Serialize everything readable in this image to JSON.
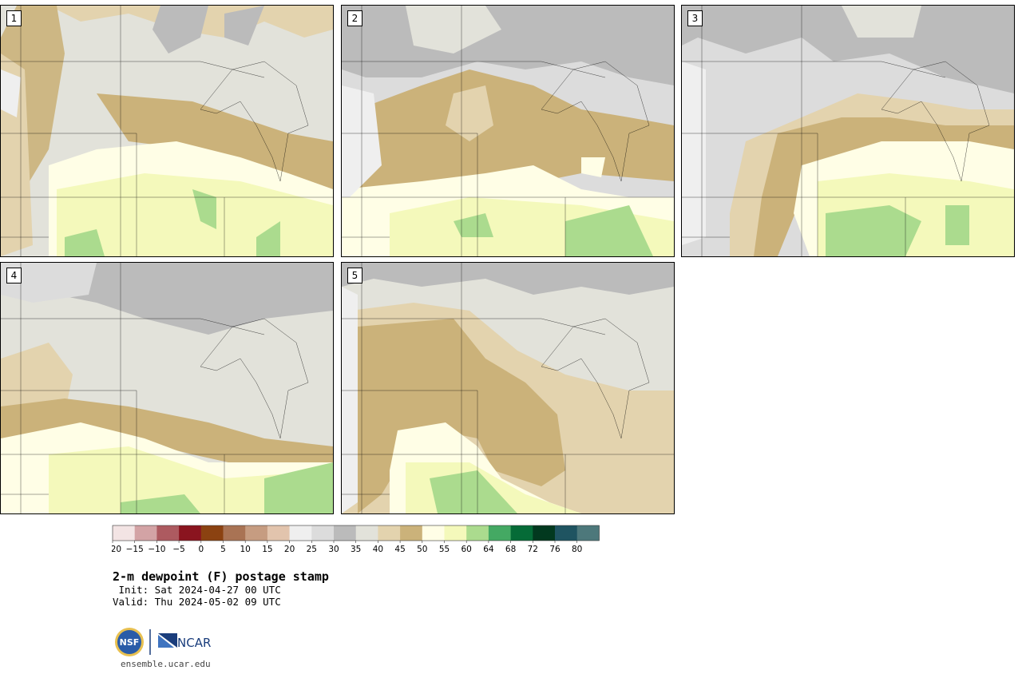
{
  "panels": [
    {
      "label": "1"
    },
    {
      "label": "2"
    },
    {
      "label": "3"
    },
    {
      "label": "4"
    },
    {
      "label": "5"
    }
  ],
  "colorbar": {
    "colors": [
      "#f3e4e4",
      "#d3a3a5",
      "#ad5a60",
      "#8a141f",
      "#8b4211",
      "#a97354",
      "#c69c81",
      "#e2c4ad",
      "#efefef",
      "#dcdcdc",
      "#bbbbbb",
      "#e2e2da",
      "#e3d3ae",
      "#cbb27a",
      "#fffee6",
      "#f4f9bb",
      "#abdb8e",
      "#44a963",
      "#056b37",
      "#02391f",
      "#1f5461",
      "#4d787b"
    ],
    "tick_labels": [
      "−20",
      "−15",
      "−10",
      "−5",
      "0",
      "5",
      "10",
      "15",
      "20",
      "25",
      "30",
      "35",
      "40",
      "45",
      "50",
      "55",
      "60",
      "64",
      "68",
      "72",
      "76",
      "80"
    ]
  },
  "title": "2-m dewpoint (F) postage stamp",
  "init_line": " Init: Sat 2024-04-27 00 UTC",
  "valid_line": "Valid: Thu 2024-05-02 09 UTC",
  "logos": {
    "nsf": "NSF",
    "ncar": "NCAR"
  },
  "website": "ensemble.ucar.edu"
}
